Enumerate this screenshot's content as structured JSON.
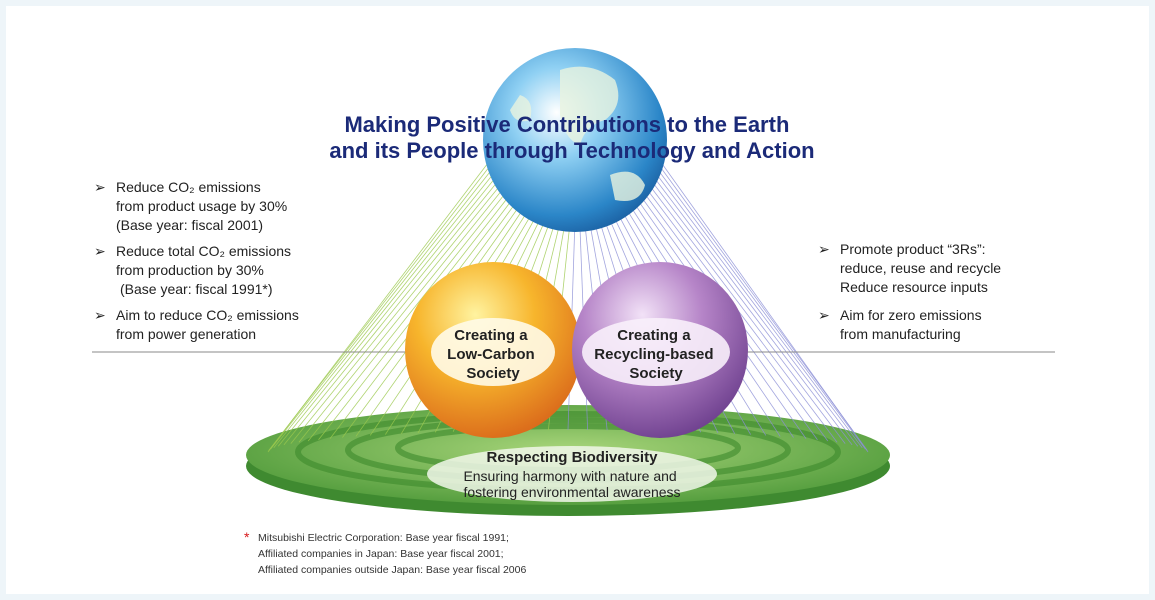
{
  "title": {
    "lines": [
      "Making Positive Contributions to the Earth",
      "and its People through Technology and Action"
    ]
  },
  "left_goals": [
    {
      "lines": [
        "Reduce CO₂ emissions",
        "from product usage by 30%",
        "(Base year: fiscal 2001)"
      ]
    },
    {
      "lines": [
        "Reduce total CO₂ emissions",
        "from production by 30%",
        "(Base year: fiscal 1991*)"
      ]
    },
    {
      "lines": [
        "Aim to reduce CO₂ emissions",
        "from power generation"
      ]
    }
  ],
  "right_goals": [
    {
      "lines": [
        "Promote product “3Rs”:",
        "reduce, reuse and recycle",
        "Reduce resource inputs"
      ]
    },
    {
      "lines": [
        "Aim for zero emissions",
        "from manufacturing"
      ]
    }
  ],
  "spheres": [
    {
      "lines": [
        "Creating a",
        "Low-Carbon",
        "Society"
      ]
    },
    {
      "lines": [
        "Creating a",
        "Recycling-based",
        "Society"
      ]
    }
  ],
  "biodiversity": {
    "heading": "Respecting Biodiversity",
    "lines": [
      "Ensuring harmony with nature and",
      "fostering environmental awareness"
    ]
  },
  "footnote": {
    "marker": "*",
    "lines": [
      "Mitsubishi Electric Corporation: Base year fiscal 1991;",
      "Affiliated companies in Japan: Base year fiscal 2001;",
      "Affiliated companies outside Japan: Base year fiscal 2006"
    ]
  }
}
